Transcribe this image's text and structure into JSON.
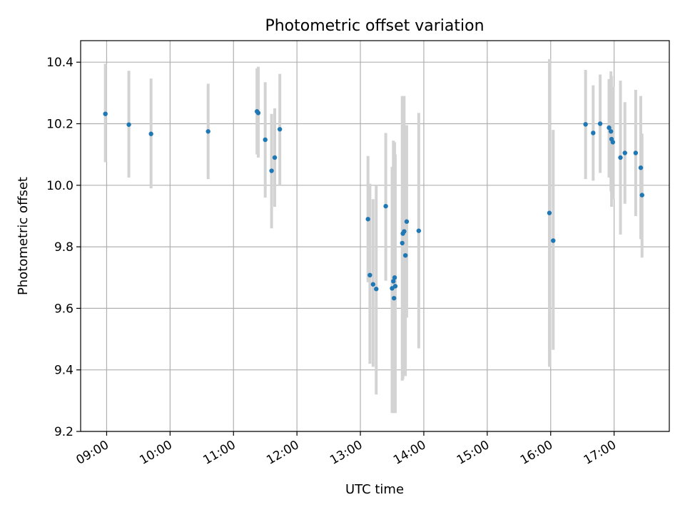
{
  "chart_data": {
    "type": "scatter",
    "title": "Photometric offset variation",
    "xlabel": "UTC time",
    "ylabel": "Photometric offset",
    "x_unit": "hours UTC",
    "xlim": [
      8.59,
      17.87
    ],
    "ylim": [
      9.2,
      10.47
    ],
    "x_ticks": [
      {
        "value": 9,
        "label": "09:00"
      },
      {
        "value": 10,
        "label": "10:00"
      },
      {
        "value": 11,
        "label": "11:00"
      },
      {
        "value": 12,
        "label": "12:00"
      },
      {
        "value": 13,
        "label": "13:00"
      },
      {
        "value": 14,
        "label": "14:00"
      },
      {
        "value": 15,
        "label": "15:00"
      },
      {
        "value": 16,
        "label": "16:00"
      },
      {
        "value": 17,
        "label": "17:00"
      }
    ],
    "y_ticks": [
      {
        "value": 9.2,
        "label": "9.2"
      },
      {
        "value": 9.4,
        "label": "9.4"
      },
      {
        "value": 9.6,
        "label": "9.6"
      },
      {
        "value": 9.8,
        "label": "9.8"
      },
      {
        "value": 10.0,
        "label": "10.0"
      },
      {
        "value": 10.2,
        "label": "10.2"
      },
      {
        "value": 10.4,
        "label": "10.4"
      }
    ],
    "grid": true,
    "colors": {
      "point": "#1f77b4",
      "error_bar": "#d3d3d3"
    },
    "series": [
      {
        "points": [
          {
            "x": 8.98,
            "y": 10.232,
            "lo": 10.075,
            "hi": 10.395
          },
          {
            "x": 9.35,
            "y": 10.197,
            "lo": 10.025,
            "hi": 10.372
          },
          {
            "x": 9.7,
            "y": 10.167,
            "lo": 9.99,
            "hi": 10.347
          },
          {
            "x": 10.6,
            "y": 10.175,
            "lo": 10.02,
            "hi": 10.33
          },
          {
            "x": 11.37,
            "y": 10.24,
            "lo": 10.1,
            "hi": 10.38
          },
          {
            "x": 11.39,
            "y": 10.235,
            "lo": 10.09,
            "hi": 10.385
          },
          {
            "x": 11.5,
            "y": 10.148,
            "lo": 9.96,
            "hi": 10.335
          },
          {
            "x": 11.6,
            "y": 10.047,
            "lo": 9.86,
            "hi": 10.232
          },
          {
            "x": 11.65,
            "y": 10.09,
            "lo": 9.93,
            "hi": 10.25
          },
          {
            "x": 11.73,
            "y": 10.182,
            "lo": 10.0,
            "hi": 10.362
          },
          {
            "x": 13.12,
            "y": 9.89,
            "lo": 9.685,
            "hi": 10.095
          },
          {
            "x": 13.15,
            "y": 9.708,
            "lo": 9.42,
            "hi": 10.005
          },
          {
            "x": 13.2,
            "y": 9.678,
            "lo": 9.41,
            "hi": 9.955
          },
          {
            "x": 13.25,
            "y": 9.663,
            "lo": 9.32,
            "hi": 10.0
          },
          {
            "x": 13.4,
            "y": 9.932,
            "lo": 9.69,
            "hi": 10.17
          },
          {
            "x": 13.5,
            "y": 9.665,
            "lo": 9.26,
            "hi": 10.06
          },
          {
            "x": 13.52,
            "y": 9.688,
            "lo": 9.26,
            "hi": 10.145
          },
          {
            "x": 13.53,
            "y": 9.633,
            "lo": 9.26,
            "hi": 10.0
          },
          {
            "x": 13.54,
            "y": 9.7,
            "lo": 9.265,
            "hi": 10.14
          },
          {
            "x": 13.55,
            "y": 9.672,
            "lo": 9.26,
            "hi": 10.1
          },
          {
            "x": 13.66,
            "y": 9.812,
            "lo": 9.365,
            "hi": 10.29
          },
          {
            "x": 13.67,
            "y": 9.843,
            "lo": 9.37,
            "hi": 10.275
          },
          {
            "x": 13.69,
            "y": 9.85,
            "lo": 9.4,
            "hi": 10.29
          },
          {
            "x": 13.71,
            "y": 9.772,
            "lo": 9.38,
            "hi": 10.19
          },
          {
            "x": 13.73,
            "y": 9.882,
            "lo": 9.57,
            "hi": 10.195
          },
          {
            "x": 13.92,
            "y": 9.852,
            "lo": 9.47,
            "hi": 10.235
          },
          {
            "x": 15.98,
            "y": 9.91,
            "lo": 9.41,
            "hi": 10.41
          },
          {
            "x": 16.04,
            "y": 9.82,
            "lo": 9.465,
            "hi": 10.18
          },
          {
            "x": 16.55,
            "y": 10.198,
            "lo": 10.02,
            "hi": 10.375
          },
          {
            "x": 16.67,
            "y": 10.17,
            "lo": 10.015,
            "hi": 10.325
          },
          {
            "x": 16.78,
            "y": 10.2,
            "lo": 10.04,
            "hi": 10.36
          },
          {
            "x": 16.92,
            "y": 10.187,
            "lo": 10.025,
            "hi": 10.345
          },
          {
            "x": 16.95,
            "y": 10.175,
            "lo": 9.98,
            "hi": 10.37
          },
          {
            "x": 16.96,
            "y": 10.15,
            "lo": 9.93,
            "hi": 10.355
          },
          {
            "x": 16.98,
            "y": 10.14,
            "lo": 9.955,
            "hi": 10.32
          },
          {
            "x": 17.1,
            "y": 10.09,
            "lo": 9.84,
            "hi": 10.34
          },
          {
            "x": 17.17,
            "y": 10.105,
            "lo": 9.94,
            "hi": 10.27
          },
          {
            "x": 17.34,
            "y": 10.105,
            "lo": 9.9,
            "hi": 10.31
          },
          {
            "x": 17.42,
            "y": 10.057,
            "lo": 9.825,
            "hi": 10.29
          },
          {
            "x": 17.44,
            "y": 9.968,
            "lo": 9.765,
            "hi": 10.168
          }
        ]
      }
    ]
  }
}
